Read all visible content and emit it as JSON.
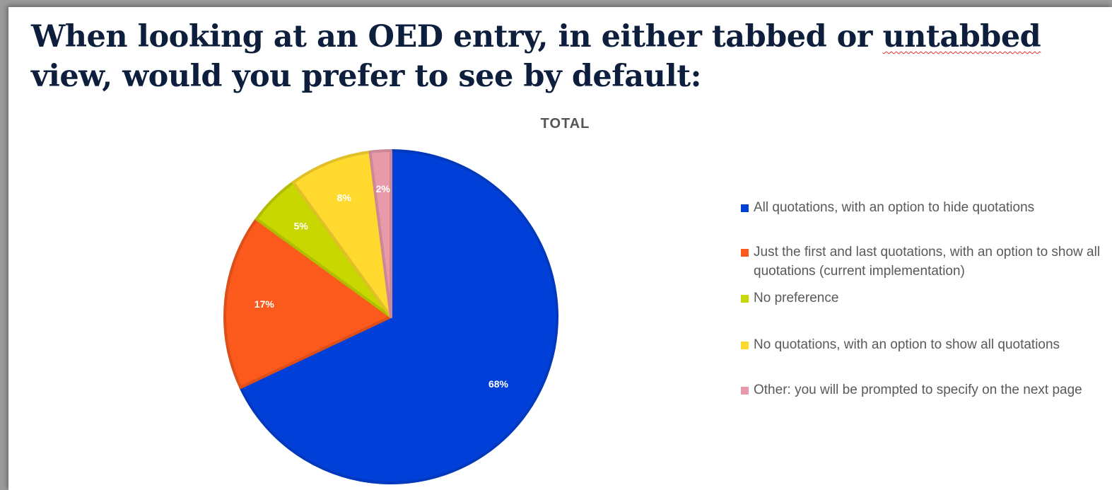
{
  "slide": {
    "title_before": "When looking at an OED entry, in either tabbed or ",
    "title_underlined": "untabbed",
    "title_after": " view, would you prefer to see by default:"
  },
  "chart_data": {
    "type": "pie",
    "title": "TOTAL",
    "legend_position": "right",
    "series": [
      {
        "name": "",
        "slices": [
          {
            "label": "All quotations, with an option to hide quotations",
            "value": 68,
            "display": "68%",
            "color": "#0040d8"
          },
          {
            "label": "Just the first and last quotations, with an option to show all quotations (current implementation)",
            "value": 17,
            "display": "17%",
            "color": "#fb5a1c"
          },
          {
            "label": "No preference",
            "value": 5,
            "display": "5%",
            "color": "#c8d700"
          },
          {
            "label": "No quotations, with an option to show all quotations",
            "value": 8,
            "display": "8%",
            "color": "#ffd92e"
          },
          {
            "label": "Other: you will be prompted to specify on the next page",
            "value": 2,
            "display": "2%",
            "color": "#e99aaa"
          }
        ]
      }
    ]
  }
}
